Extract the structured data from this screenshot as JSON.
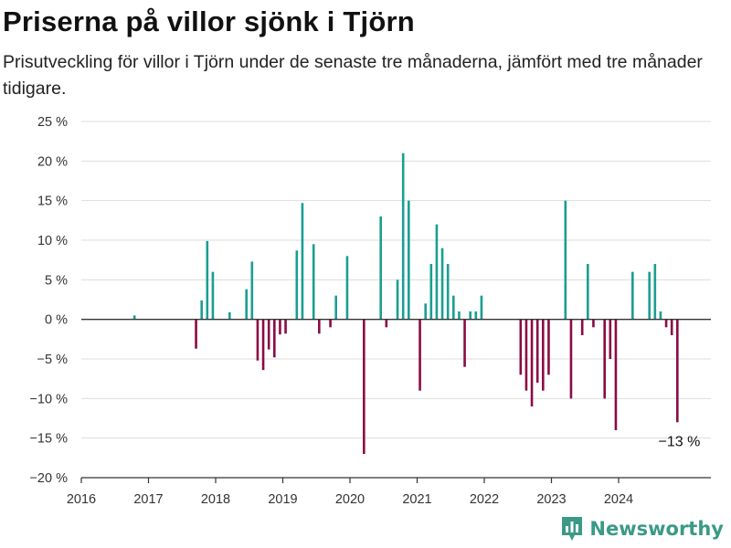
{
  "title": "Priserna på villor sjönk i Tjörn",
  "subtitle": "Prisutveckling för villor i Tjörn under de senaste tre månaderna, jämfört med tre månader tidigare.",
  "brand": {
    "name": "Newsworthy",
    "icon": "bar-chart-logo-icon"
  },
  "colors": {
    "positive": "#1a9e91",
    "negative": "#8c0a44",
    "grid": "#dddddd",
    "axis": "#333333"
  },
  "chart_data": {
    "type": "bar",
    "x_unit": "month",
    "xlabel": "",
    "ylabel": "",
    "ylim": [
      -20,
      25
    ],
    "y_ticks": [
      25,
      20,
      15,
      10,
      5,
      0,
      -5,
      -10,
      -15,
      -20
    ],
    "y_tick_labels": [
      "25 %",
      "20 %",
      "15 %",
      "10 %",
      "5 %",
      "0 %",
      "−5 %",
      "−10 %",
      "−15 %",
      "−20 %"
    ],
    "x_ticks": [
      "2016",
      "2017",
      "2018",
      "2019",
      "2020",
      "2021",
      "2022",
      "2023",
      "2024"
    ],
    "grid": true,
    "annotation": {
      "date": "2024-11",
      "text": "−13 %"
    },
    "series": [
      {
        "points": [
          {
            "date": "2016-10",
            "value": 0.5
          },
          {
            "date": "2017-09",
            "value": -3.7
          },
          {
            "date": "2017-10",
            "value": 2.4
          },
          {
            "date": "2017-11",
            "value": 9.9
          },
          {
            "date": "2017-12",
            "value": 6.0
          },
          {
            "date": "2018-03",
            "value": 0.9
          },
          {
            "date": "2018-06",
            "value": 3.8
          },
          {
            "date": "2018-07",
            "value": 7.3
          },
          {
            "date": "2018-08",
            "value": -5.2
          },
          {
            "date": "2018-09",
            "value": -6.4
          },
          {
            "date": "2018-10",
            "value": -3.8
          },
          {
            "date": "2018-11",
            "value": -4.8
          },
          {
            "date": "2018-12",
            "value": -1.9
          },
          {
            "date": "2019-01",
            "value": -1.8
          },
          {
            "date": "2019-03",
            "value": 8.7
          },
          {
            "date": "2019-04",
            "value": 14.7
          },
          {
            "date": "2019-06",
            "value": 9.5
          },
          {
            "date": "2019-07",
            "value": -1.8
          },
          {
            "date": "2019-09",
            "value": -1.0
          },
          {
            "date": "2019-10",
            "value": 3.0
          },
          {
            "date": "2019-12",
            "value": 8.0
          },
          {
            "date": "2020-03",
            "value": -17.0
          },
          {
            "date": "2020-06",
            "value": 13.0
          },
          {
            "date": "2020-07",
            "value": -1.0
          },
          {
            "date": "2020-09",
            "value": 5.0
          },
          {
            "date": "2020-10",
            "value": 21.0
          },
          {
            "date": "2020-11",
            "value": 15.0
          },
          {
            "date": "2021-01",
            "value": -9.0
          },
          {
            "date": "2021-02",
            "value": 2.0
          },
          {
            "date": "2021-03",
            "value": 7.0
          },
          {
            "date": "2021-04",
            "value": 12.0
          },
          {
            "date": "2021-05",
            "value": 9.0
          },
          {
            "date": "2021-06",
            "value": 7.0
          },
          {
            "date": "2021-07",
            "value": 3.0
          },
          {
            "date": "2021-08",
            "value": 1.0
          },
          {
            "date": "2021-09",
            "value": -6.0
          },
          {
            "date": "2021-10",
            "value": 1.0
          },
          {
            "date": "2021-11",
            "value": 1.0
          },
          {
            "date": "2021-12",
            "value": 3.0
          },
          {
            "date": "2022-07",
            "value": -7.0
          },
          {
            "date": "2022-08",
            "value": -9.0
          },
          {
            "date": "2022-09",
            "value": -11.0
          },
          {
            "date": "2022-10",
            "value": -8.0
          },
          {
            "date": "2022-11",
            "value": -9.0
          },
          {
            "date": "2022-12",
            "value": -7.0
          },
          {
            "date": "2023-03",
            "value": 15.0
          },
          {
            "date": "2023-04",
            "value": -10.0
          },
          {
            "date": "2023-06",
            "value": -2.0
          },
          {
            "date": "2023-07",
            "value": 7.0
          },
          {
            "date": "2023-08",
            "value": -1.0
          },
          {
            "date": "2023-10",
            "value": -10.0
          },
          {
            "date": "2023-11",
            "value": -5.0
          },
          {
            "date": "2023-12",
            "value": -14.0
          },
          {
            "date": "2024-03",
            "value": 6.0
          },
          {
            "date": "2024-06",
            "value": 6.0
          },
          {
            "date": "2024-07",
            "value": 7.0
          },
          {
            "date": "2024-08",
            "value": 1.0
          },
          {
            "date": "2024-09",
            "value": -1.0
          },
          {
            "date": "2024-10",
            "value": -2.0
          },
          {
            "date": "2024-11",
            "value": -13.0
          }
        ]
      }
    ]
  }
}
